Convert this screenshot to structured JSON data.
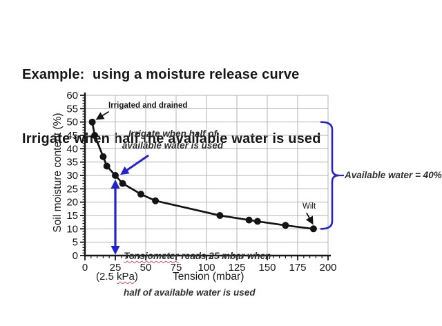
{
  "title": {
    "line1": "Example:  using a moisture release curve",
    "line2": "Irrigate when half the available water is used"
  },
  "colors": {
    "accent_blue": "#2323cc",
    "ink": "#141414",
    "grid_gray": "#b3b3b3",
    "annotation_gray": "#2e2e2e",
    "squiggle_red": "#d05050"
  },
  "chart_data": {
    "type": "line",
    "title": "",
    "xlabel": "Tension (mbar)",
    "ylabel": "Soil moisture content (%)",
    "x_sub_label": {
      "pre": "(2.5 ",
      "squiggle": "kPa",
      "post": ")"
    },
    "xlim": [
      0,
      200
    ],
    "ylim": [
      0,
      60
    ],
    "xticks": [
      0,
      25,
      50,
      75,
      100,
      125,
      150,
      175,
      200
    ],
    "yticks": [
      0,
      5,
      10,
      15,
      20,
      25,
      30,
      35,
      40,
      45,
      50,
      55,
      60
    ],
    "x_minor_step": 5,
    "y_minor_step": 1,
    "grid": true,
    "legend": "none",
    "points": [
      [
        6,
        50
      ],
      [
        8,
        45
      ],
      [
        15,
        37
      ],
      [
        18,
        33.5
      ],
      [
        25,
        30
      ],
      [
        31,
        27
      ],
      [
        46,
        23
      ],
      [
        58,
        20.5
      ],
      [
        111,
        15
      ],
      [
        135,
        13.3
      ],
      [
        142,
        12.8
      ],
      [
        165,
        11.3
      ],
      [
        188,
        10
      ]
    ],
    "annotations": {
      "irrigated": {
        "text": "Irrigated and drained",
        "arrow_to": [
          6,
          50
        ]
      },
      "irrigate_half": {
        "line1": "Irrigate when half of",
        "line2": "available water is used",
        "arrow_to": [
          25,
          30
        ]
      },
      "tensiometer": {
        "squiggle_word": "Tensiometer",
        "line1_rest": " reads 25 mbar when",
        "line2": "half of available water is used"
      },
      "wilt": {
        "text": "Wilt",
        "arrow_to": [
          188,
          10
        ]
      },
      "available_water": {
        "text": "Available water = 40%",
        "brace_from_y": 50,
        "brace_to_y": 10
      }
    },
    "vertical_arrow": {
      "x": 25,
      "y_from": 0.5,
      "y_to": 28.5
    }
  }
}
